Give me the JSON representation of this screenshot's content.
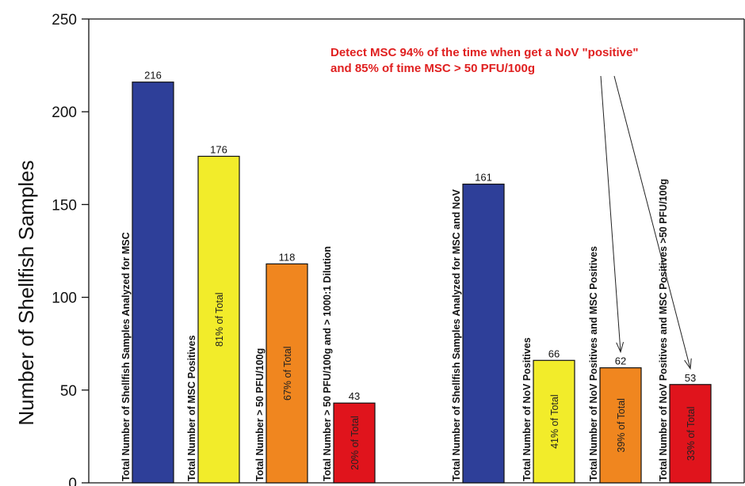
{
  "chart_data": {
    "type": "bar",
    "title": "",
    "xlabel": "",
    "ylabel": "Number of Shellfish Samples",
    "ylim": [
      0,
      250
    ],
    "yticks": [
      0,
      50,
      100,
      150,
      200,
      250
    ],
    "grid": false,
    "legend": "none",
    "bars": [
      {
        "category": "Total Number of Shellfish Samples Analyzed for MSC",
        "value": 216,
        "color": "#2e3f99",
        "pct_label": ""
      },
      {
        "category": "Total Number of MSC Positives",
        "value": 176,
        "color": "#f2ec2a",
        "pct_label": "81% of Total"
      },
      {
        "category": "Total Number > 50 PFU/100g",
        "value": 118,
        "color": "#f0861f",
        "pct_label": "67% of Total"
      },
      {
        "category": "Total Number > 50 PFU/100g and > 1000:1 Dilution",
        "value": 43,
        "color": "#e0141c",
        "pct_label": "20% of Total"
      },
      {
        "category": "Total Number of Shellfish Samples Analyzed for MSC and NoV",
        "value": 161,
        "color": "#2e3f99",
        "pct_label": ""
      },
      {
        "category": "Total Number of NoV Positives",
        "value": 66,
        "color": "#f2ec2a",
        "pct_label": "41% of Total"
      },
      {
        "category": "Total Number of NoV Positives and MSC Positives",
        "value": 62,
        "color": "#f0861f",
        "pct_label": "39% of Total"
      },
      {
        "category": "Total Number of NoV Positives and MSC Positives >50 PFU/100g",
        "value": 53,
        "color": "#e0141c",
        "pct_label": "33% of Total"
      }
    ],
    "annotation": {
      "lines": [
        "Detect MSC 94% of the time when get a NoV \"positive\"",
        "and 85% of time MSC > 50 PFU/100g"
      ],
      "color": "#e02020",
      "arrow_targets": [
        6,
        7
      ]
    }
  }
}
